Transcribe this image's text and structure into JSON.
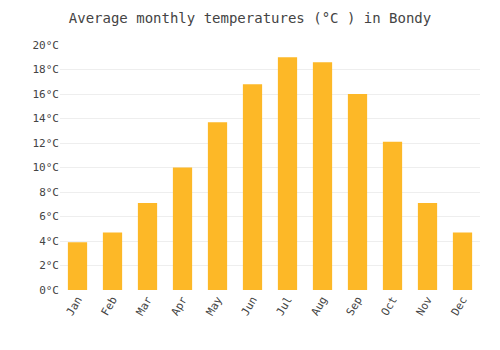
{
  "chart_data": {
    "type": "bar",
    "title": "Average monthly temperatures (°C ) in Bondy",
    "categories": [
      "Jan",
      "Feb",
      "Mar",
      "Apr",
      "May",
      "Jun",
      "Jul",
      "Aug",
      "Sep",
      "Oct",
      "Nov",
      "Dec"
    ],
    "values": [
      3.9,
      4.7,
      7.1,
      10.0,
      13.7,
      16.8,
      19.0,
      18.6,
      16.0,
      12.1,
      7.1,
      4.7
    ],
    "color": "#FDB827",
    "ylim": [
      0,
      20
    ],
    "yticks": [
      {
        "value": 0,
        "label": "0°C"
      },
      {
        "value": 2,
        "label": "2°C"
      },
      {
        "value": 4,
        "label": "4°C"
      },
      {
        "value": 6,
        "label": "6°C"
      },
      {
        "value": 8,
        "label": "8°C"
      },
      {
        "value": 10,
        "label": "10°C"
      },
      {
        "value": 12,
        "label": "12°C"
      },
      {
        "value": 14,
        "label": "14°C"
      },
      {
        "value": 16,
        "label": "16°C"
      },
      {
        "value": 18,
        "label": "18°C"
      },
      {
        "value": 20,
        "label": "20°C"
      }
    ],
    "grid": true
  }
}
